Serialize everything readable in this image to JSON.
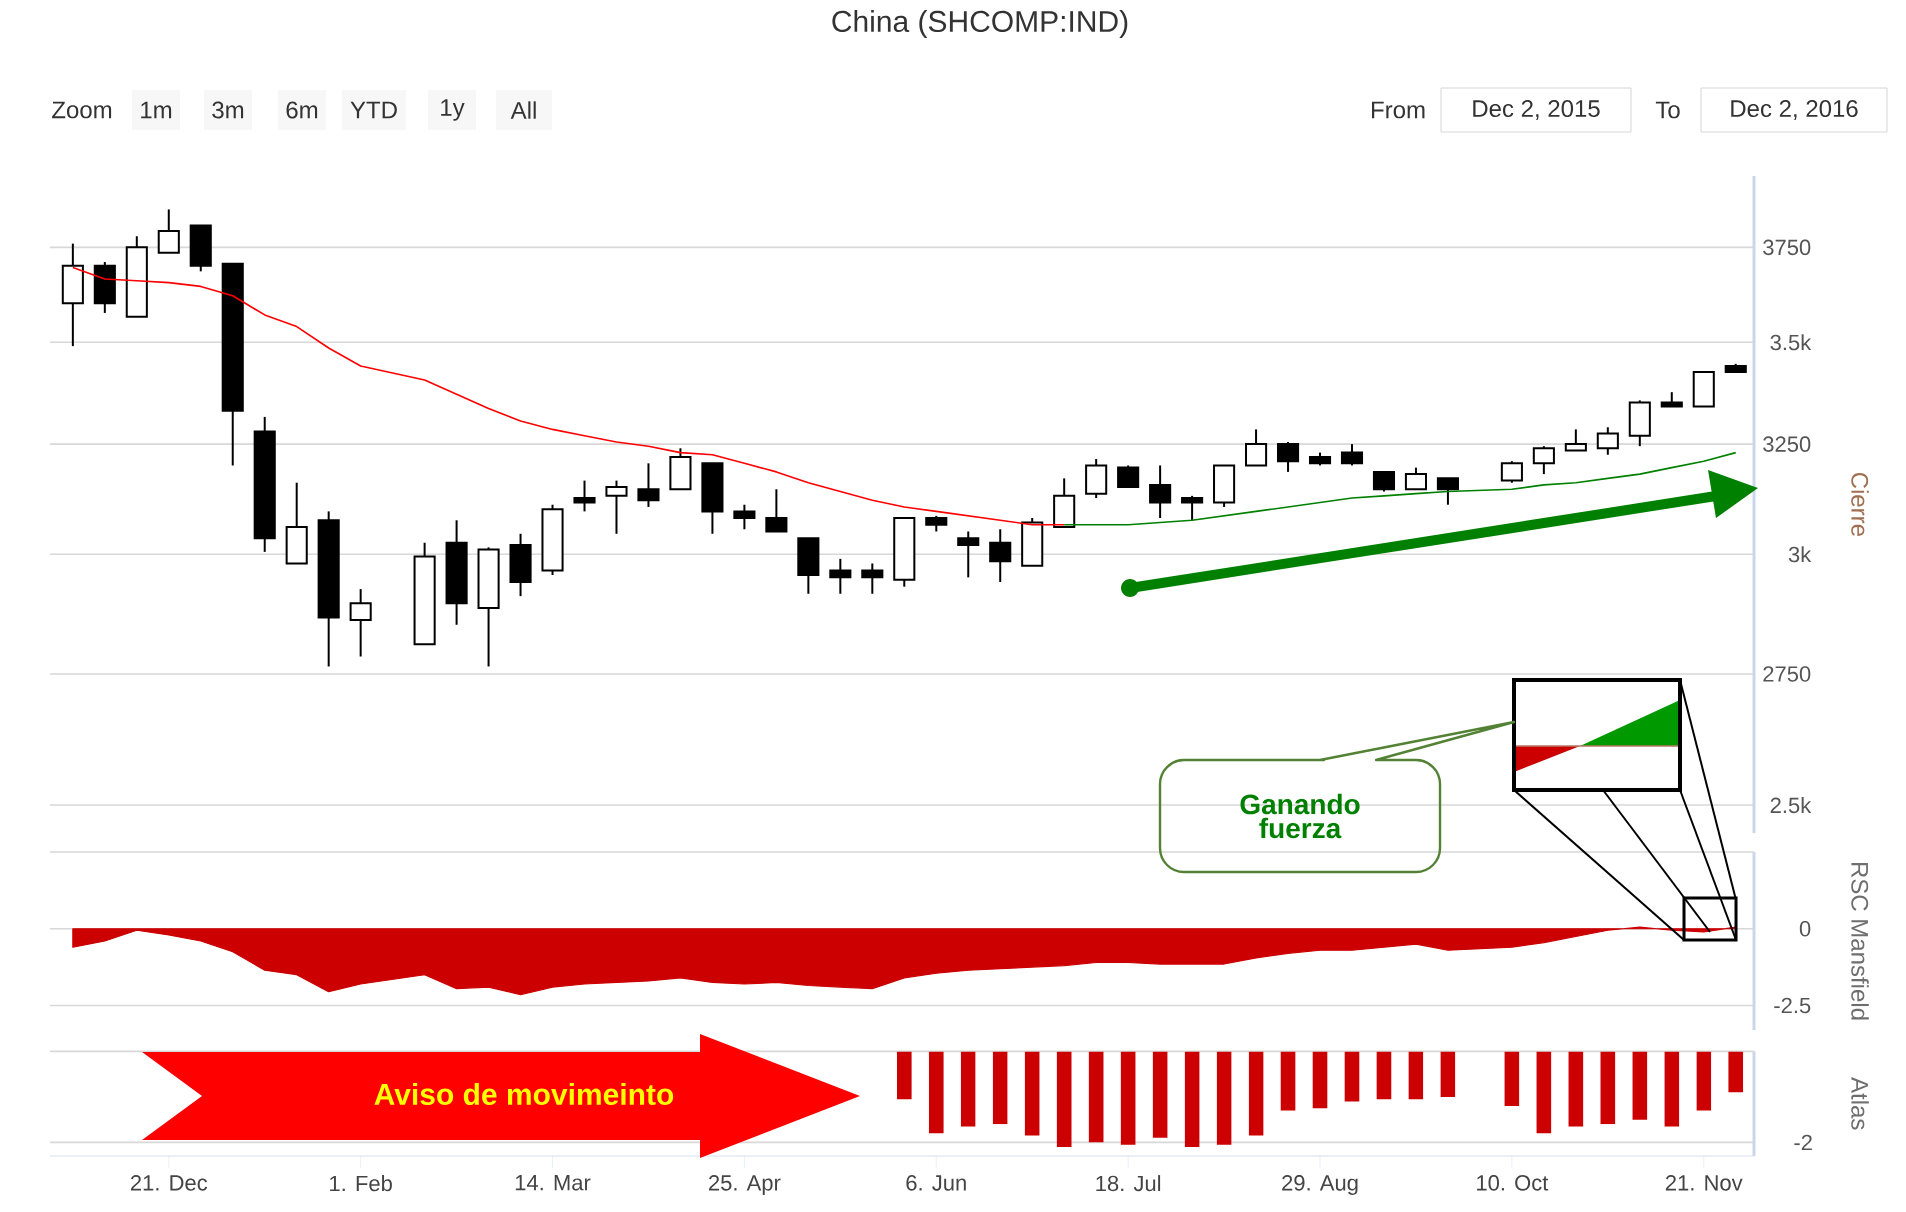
{
  "chart_data": [
    {
      "type": "candlestick",
      "title": "China (SHCOMP:IND)",
      "ylabel": "Cierre",
      "log": true,
      "grid": "y",
      "tick_labels": "y",
      "xlim": [
        "2015-11-25",
        "2016-12-02"
      ],
      "ylim": [
        2450,
        3950
      ],
      "yticks": [
        {
          "value": 2500,
          "label": "2.5k"
        },
        2750,
        {
          "value": 3000,
          "label": "3k"
        },
        3250,
        {
          "value": 3500,
          "label": "3.5k"
        },
        3750
      ],
      "x": [
        "2015-11-30",
        "2015-12-07",
        "2015-12-14",
        "2015-12-21",
        "2015-12-28",
        "2016-01-04",
        "2016-01-11",
        "2016-01-18",
        "2016-01-25",
        "2016-02-01",
        "2016-02-15",
        "2016-02-22",
        "2016-02-29",
        "2016-03-07",
        "2016-03-14",
        "2016-03-21",
        "2016-03-28",
        "2016-04-04",
        "2016-04-11",
        "2016-04-18",
        "2016-04-25",
        "2016-05-02",
        "2016-05-09",
        "2016-05-16",
        "2016-05-23",
        "2016-05-30",
        "2016-06-06",
        "2016-06-13",
        "2016-06-20",
        "2016-06-27",
        "2016-07-04",
        "2016-07-11",
        "2016-07-18",
        "2016-07-25",
        "2016-08-01",
        "2016-08-08",
        "2016-08-15",
        "2016-08-22",
        "2016-08-29",
        "2016-09-05",
        "2016-09-12",
        "2016-09-19",
        "2016-09-26",
        "2016-10-10",
        "2016-10-17",
        "2016-10-24",
        "2016-10-31",
        "2016-11-07",
        "2016-11-14",
        "2016-11-21",
        "2016-11-28"
      ],
      "ohlc": [
        [
          3600,
          3760,
          3490,
          3700
        ],
        [
          3700,
          3710,
          3575,
          3600
        ],
        [
          3565,
          3780,
          3565,
          3750
        ],
        [
          3735,
          3855,
          3735,
          3795
        ],
        [
          3810,
          3810,
          3685,
          3700
        ],
        [
          3705,
          3705,
          3200,
          3330
        ],
        [
          3280,
          3315,
          3005,
          3035
        ],
        [
          2980,
          3160,
          2980,
          3060
        ],
        [
          3075,
          3095,
          2765,
          2865
        ],
        [
          2860,
          2925,
          2785,
          2895
        ],
        [
          2810,
          3025,
          2810,
          2995
        ],
        [
          3025,
          3075,
          2850,
          2895
        ],
        [
          2885,
          3015,
          2765,
          3010
        ],
        [
          3020,
          3045,
          2910,
          2940
        ],
        [
          2965,
          3110,
          2955,
          3100
        ],
        [
          3125,
          3165,
          3095,
          3115
        ],
        [
          3130,
          3165,
          3045,
          3150
        ],
        [
          3145,
          3205,
          3105,
          3120
        ],
        [
          3145,
          3240,
          3145,
          3220
        ],
        [
          3205,
          3205,
          3045,
          3095
        ],
        [
          3095,
          3110,
          3055,
          3080
        ],
        [
          3080,
          3145,
          3050,
          3050
        ],
        [
          3035,
          3035,
          2915,
          2955
        ],
        [
          2965,
          2990,
          2915,
          2950
        ],
        [
          2965,
          2980,
          2915,
          2950
        ],
        [
          2945,
          3080,
          2930,
          3080
        ],
        [
          3080,
          3085,
          3050,
          3065
        ],
        [
          3035,
          3050,
          2950,
          3020
        ],
        [
          3025,
          3055,
          2940,
          2985
        ],
        [
          2975,
          3080,
          2975,
          3070
        ],
        [
          3060,
          3170,
          3060,
          3130
        ],
        [
          3135,
          3215,
          3125,
          3200
        ],
        [
          3195,
          3200,
          3150,
          3150
        ],
        [
          3155,
          3200,
          3080,
          3115
        ],
        [
          3125,
          3130,
          3075,
          3115
        ],
        [
          3115,
          3200,
          3105,
          3200
        ],
        [
          3200,
          3285,
          3200,
          3250
        ],
        [
          3250,
          3255,
          3185,
          3210
        ],
        [
          3220,
          3230,
          3200,
          3205
        ],
        [
          3230,
          3250,
          3200,
          3205
        ],
        [
          3185,
          3185,
          3140,
          3145
        ],
        [
          3145,
          3195,
          3145,
          3180
        ],
        [
          3170,
          3170,
          3110,
          3145
        ],
        [
          3165,
          3210,
          3160,
          3205
        ],
        [
          3205,
          3245,
          3180,
          3240
        ],
        [
          3235,
          3285,
          3235,
          3250
        ],
        [
          3240,
          3290,
          3225,
          3275
        ],
        [
          3270,
          3355,
          3245,
          3350
        ],
        [
          3350,
          3375,
          3340,
          3340
        ],
        [
          3340,
          3425,
          3340,
          3425
        ],
        [
          3440,
          3445,
          3425,
          3425
        ]
      ],
      "series": [
        {
          "type": "line",
          "color": "#ff0000",
          "x": [
            "2015-11-30",
            "2015-12-07",
            "2015-12-14",
            "2015-12-21",
            "2015-12-28",
            "2016-01-04",
            "2016-01-11",
            "2016-01-18",
            "2016-01-25",
            "2016-02-01",
            "2016-02-15",
            "2016-02-22",
            "2016-02-29",
            "2016-03-07",
            "2016-03-14",
            "2016-03-21",
            "2016-03-28",
            "2016-04-04",
            "2016-04-11",
            "2016-04-18",
            "2016-04-25",
            "2016-05-02",
            "2016-05-09",
            "2016-05-16",
            "2016-05-23",
            "2016-05-30",
            "2016-06-06",
            "2016-06-13",
            "2016-06-20",
            "2016-06-27",
            "2016-07-04"
          ],
          "values": [
            3695,
            3665,
            3660,
            3655,
            3645,
            3620,
            3570,
            3540,
            3485,
            3440,
            3405,
            3370,
            3335,
            3305,
            3285,
            3270,
            3255,
            3245,
            3230,
            3225,
            3205,
            3185,
            3160,
            3140,
            3120,
            3105,
            3095,
            3085,
            3075,
            3065,
            3065
          ]
        },
        {
          "type": "line",
          "color": "#008000",
          "x": [
            "2016-07-04",
            "2016-07-11",
            "2016-07-18",
            "2016-07-25",
            "2016-08-01",
            "2016-08-08",
            "2016-08-15",
            "2016-08-22",
            "2016-08-29",
            "2016-09-05",
            "2016-09-12",
            "2016-09-19",
            "2016-09-26",
            "2016-10-10",
            "2016-10-17",
            "2016-10-24",
            "2016-10-31",
            "2016-11-07",
            "2016-11-14",
            "2016-11-21",
            "2016-11-28"
          ],
          "values": [
            3065,
            3065,
            3065,
            3070,
            3075,
            3085,
            3095,
            3105,
            3115,
            3125,
            3130,
            3135,
            3140,
            3145,
            3155,
            3160,
            3170,
            3180,
            3195,
            3210,
            3230
          ]
        }
      ],
      "annotations": [
        "Zoom",
        "1m",
        "3m",
        "6m",
        "YTD",
        "1y",
        "All",
        "From",
        "Dec 2, 2015",
        "To",
        "Dec 2, 2016",
        "Ganando fuerza"
      ]
    },
    {
      "type": "area",
      "ylabel": "RSC Mansfield",
      "grid": "y",
      "tick_labels": "y",
      "color": "#cc0000",
      "xlim": [
        "2015-11-25",
        "2016-12-02"
      ],
      "ylim": [
        -3.3,
        2.5
      ],
      "yticks": [
        {
          "value": 2.5,
          "label": null
        },
        0,
        -2.5
      ],
      "x": [
        "2015-11-30",
        "2015-12-07",
        "2015-12-14",
        "2015-12-21",
        "2015-12-28",
        "2016-01-04",
        "2016-01-11",
        "2016-01-18",
        "2016-01-25",
        "2016-02-01",
        "2016-02-15",
        "2016-02-22",
        "2016-02-29",
        "2016-03-07",
        "2016-03-14",
        "2016-03-21",
        "2016-03-28",
        "2016-04-04",
        "2016-04-11",
        "2016-04-18",
        "2016-04-25",
        "2016-05-02",
        "2016-05-09",
        "2016-05-16",
        "2016-05-23",
        "2016-05-30",
        "2016-06-06",
        "2016-06-13",
        "2016-06-20",
        "2016-06-27",
        "2016-07-04",
        "2016-07-11",
        "2016-07-18",
        "2016-07-25",
        "2016-08-01",
        "2016-08-08",
        "2016-08-15",
        "2016-08-22",
        "2016-08-29",
        "2016-09-05",
        "2016-09-12",
        "2016-09-19",
        "2016-09-26",
        "2016-10-10",
        "2016-10-17",
        "2016-10-24",
        "2016-10-31",
        "2016-11-07",
        "2016-11-14",
        "2016-11-21",
        "2016-11-28"
      ],
      "values": [
        -0.6,
        -0.4,
        -0.05,
        -0.2,
        -0.4,
        -0.75,
        -1.35,
        -1.5,
        -2.05,
        -1.8,
        -1.5,
        -1.95,
        -1.9,
        -2.15,
        -1.9,
        -1.8,
        -1.75,
        -1.7,
        -1.6,
        -1.75,
        -1.8,
        -1.75,
        -1.85,
        -1.9,
        -1.95,
        -1.6,
        -1.45,
        -1.35,
        -1.3,
        -1.25,
        -1.2,
        -1.1,
        -1.1,
        -1.15,
        -1.15,
        -1.15,
        -0.95,
        -0.8,
        -0.7,
        -0.7,
        -0.6,
        -0.5,
        -0.7,
        -0.6,
        -0.45,
        -0.25,
        -0.05,
        0.05,
        -0.05,
        -0.1,
        0.05
      ]
    },
    {
      "type": "bar",
      "ylabel": "Atlas",
      "grid": "y",
      "color": "#cc0000",
      "xlim": [
        "2015-11-25",
        "2016-12-02"
      ],
      "ylim": [
        -2.3,
        0
      ],
      "yticks": [
        {
          "value": 0,
          "label": null
        },
        -2
      ],
      "xticks": [
        {
          "value": "2015-12-21",
          "label": "21. Dec"
        },
        {
          "value": "2016-02-01",
          "label": "1. Feb"
        },
        {
          "value": "2016-03-14",
          "label": "14. Mar"
        },
        {
          "value": "2016-04-25",
          "label": "25. Apr"
        },
        {
          "value": "2016-06-06",
          "label": "6. Jun"
        },
        {
          "value": "2016-07-18",
          "label": "18. Jul"
        },
        {
          "value": "2016-08-29",
          "label": "29. Aug"
        },
        {
          "value": "2016-10-10",
          "label": "10. Oct"
        },
        {
          "value": "2016-11-21",
          "label": "21. Nov"
        }
      ],
      "x": [
        "2016-05-30",
        "2016-06-06",
        "2016-06-13",
        "2016-06-20",
        "2016-06-27",
        "2016-07-04",
        "2016-07-11",
        "2016-07-18",
        "2016-07-25",
        "2016-08-01",
        "2016-08-08",
        "2016-08-15",
        "2016-08-22",
        "2016-08-29",
        "2016-09-05",
        "2016-09-12",
        "2016-09-19",
        "2016-09-26",
        "2016-10-10",
        "2016-10-17",
        "2016-10-24",
        "2016-10-31",
        "2016-11-07",
        "2016-11-14",
        "2016-11-21",
        "2016-11-28"
      ],
      "values": [
        -1.05,
        -1.8,
        -1.65,
        -1.6,
        -1.85,
        -2.1,
        -2,
        -2.05,
        -1.9,
        -2.1,
        -2.05,
        -1.85,
        -1.3,
        -1.25,
        -1.1,
        -1.05,
        -1.05,
        -1,
        -1.2,
        -1.8,
        -1.65,
        -1.6,
        -1.5,
        -1.65,
        -1.3,
        -0.9
      ],
      "annotations": [
        "Aviso de movimeinto"
      ]
    }
  ]
}
